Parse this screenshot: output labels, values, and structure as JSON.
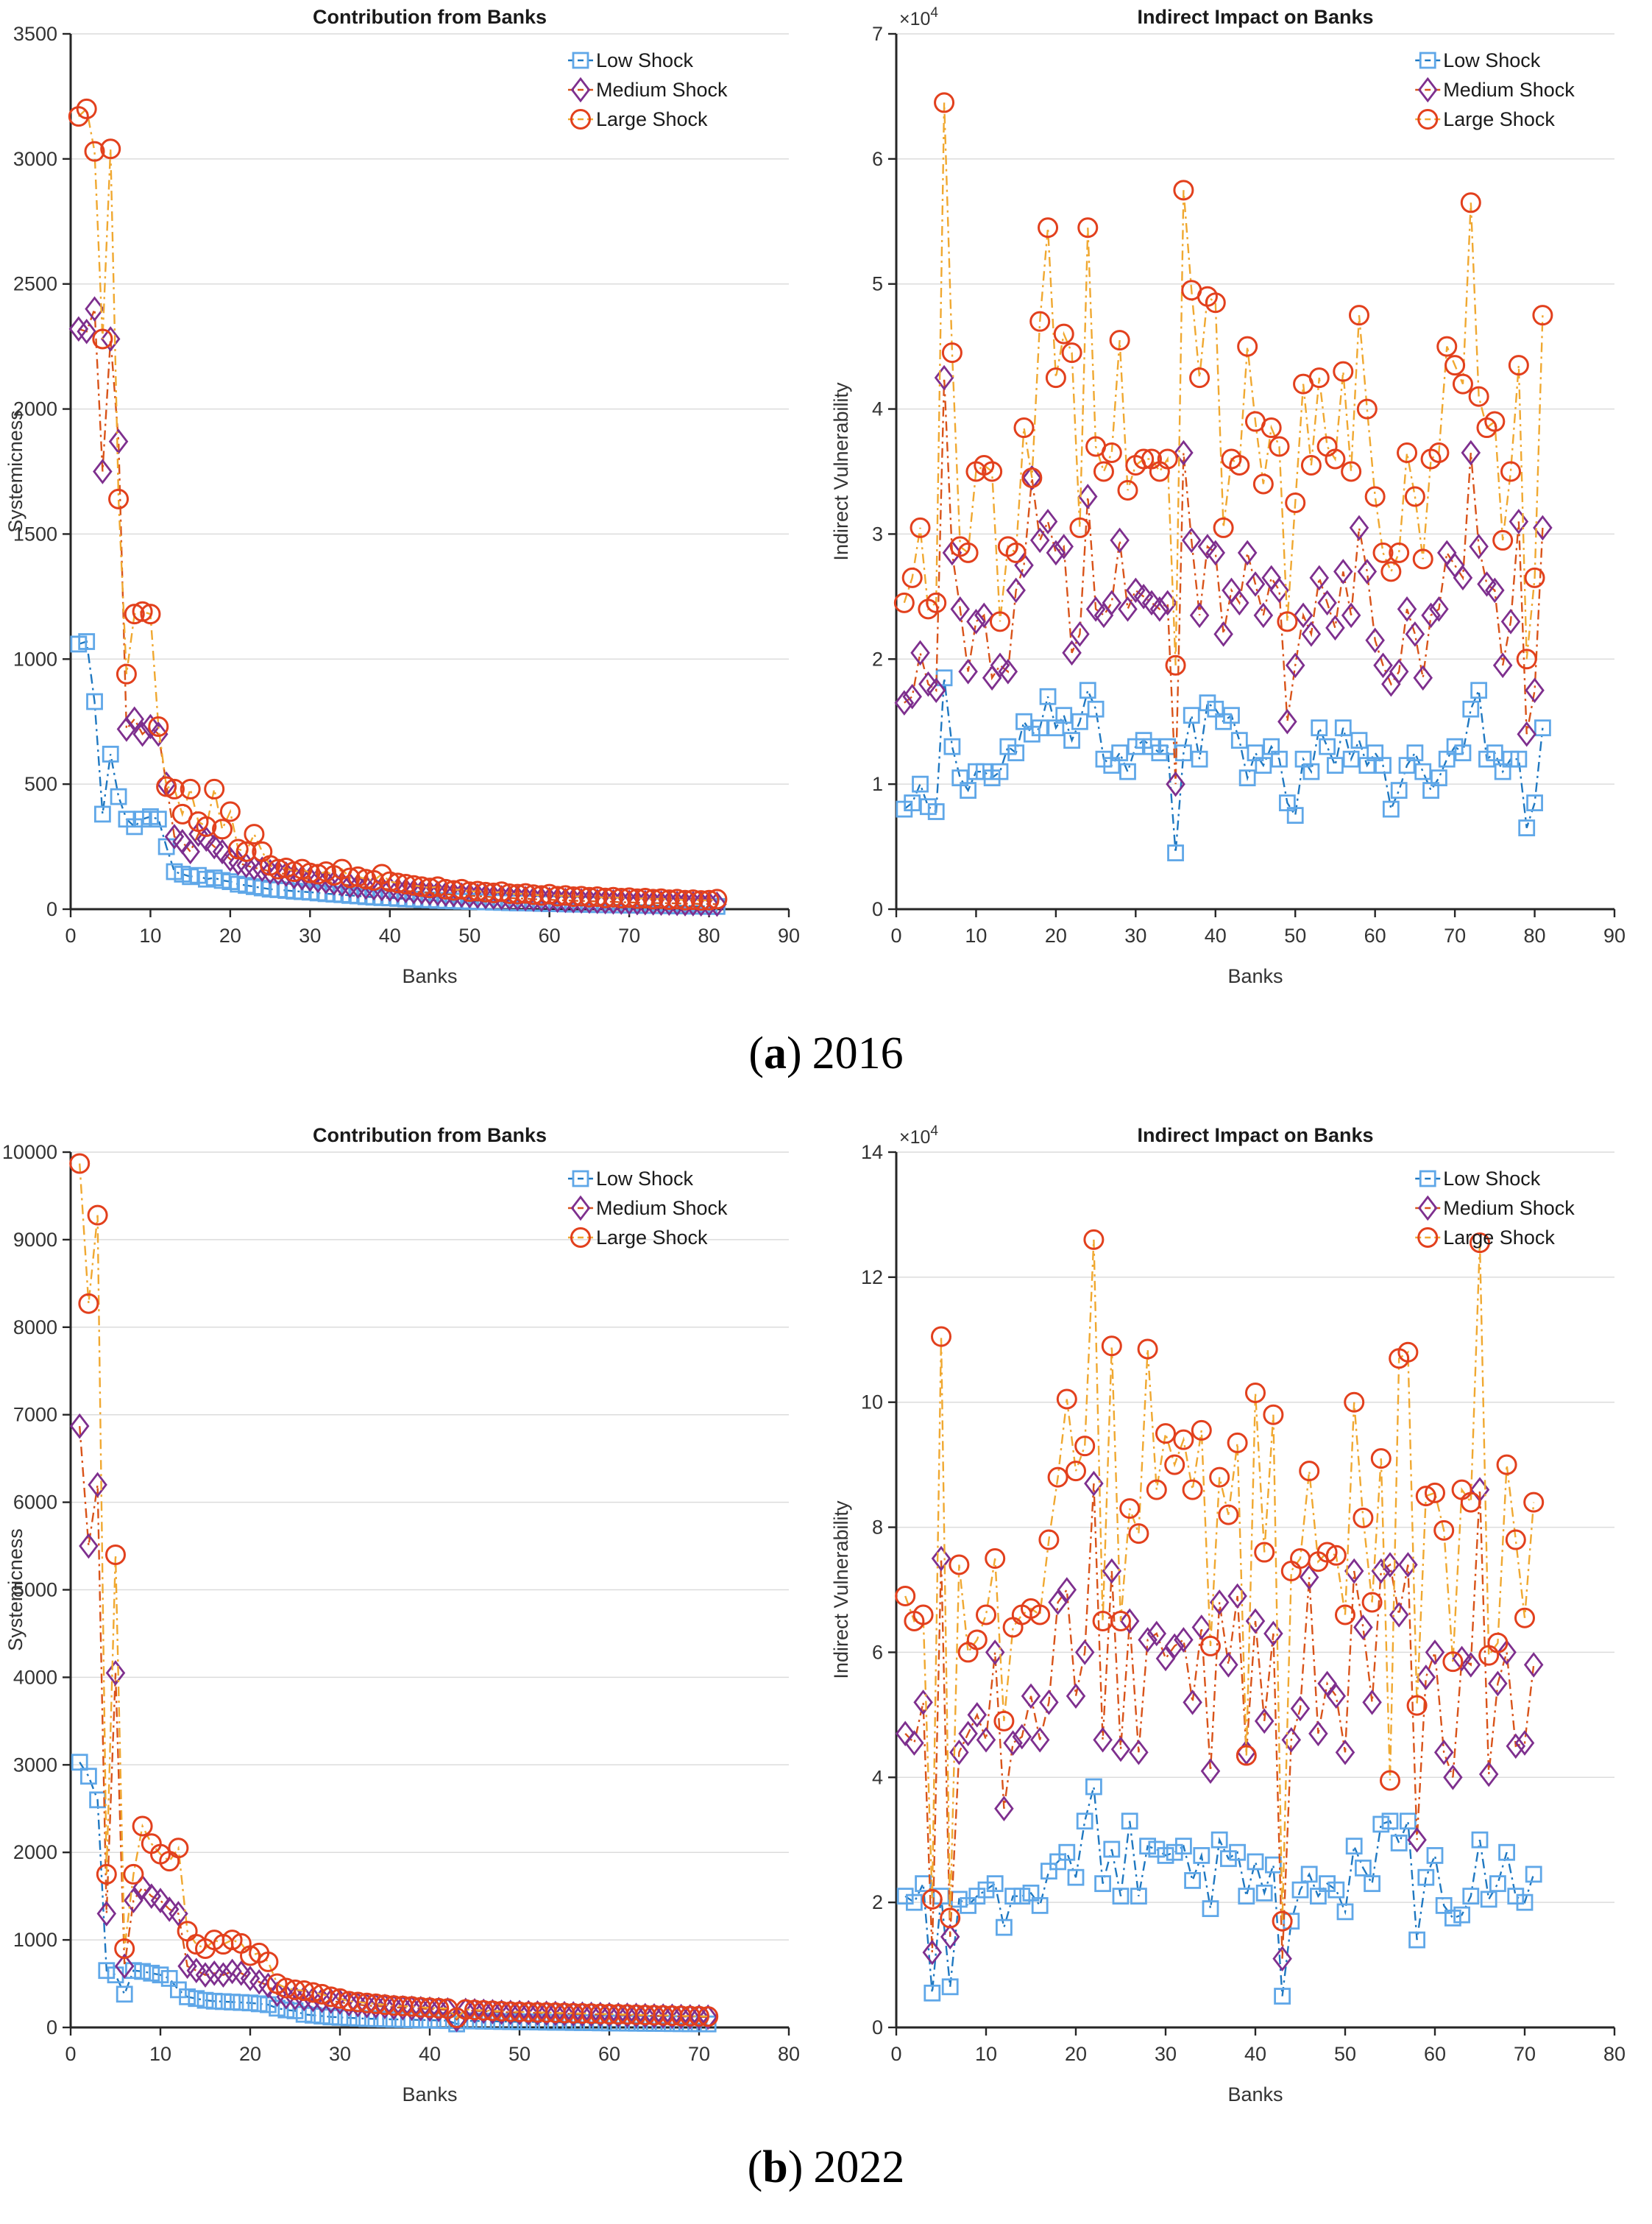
{
  "captions": {
    "paren_open": "(",
    "paren_close": ")",
    "a": {
      "label": "a",
      "year": "2016"
    },
    "b": {
      "label": "b",
      "year": "2022"
    }
  },
  "series_styles": {
    "low": {
      "marker": "square",
      "marker_color": "#5FA7E8",
      "line_color": "#1F78C1"
    },
    "medium": {
      "marker": "diamond",
      "marker_color": "#7E2F8E",
      "line_color": "#D95319"
    },
    "large": {
      "marker": "circle",
      "marker_color": "#E2401D",
      "line_color": "#F0A830"
    }
  },
  "axis_colors": {
    "spine": "#262626",
    "grid": "#DCDCDC",
    "tick_label": "#333333"
  },
  "chart_data": [
    {
      "id": "contribution-2016",
      "type": "line",
      "title": "Contribution from Banks",
      "xlabel": "Banks",
      "ylabel": "Systemicness",
      "x_max": 90,
      "x_tick_step": 10,
      "y_max": 3500,
      "y_tick_step": 500,
      "y_scale_label": null,
      "grid": "horizontal-only",
      "legend_position": "top-right-inside",
      "legend_x_frac": 0.71,
      "x_note": "bank index 1..81",
      "series": [
        {
          "name": "Low Shock",
          "key": "low",
          "values": [
            1060,
            1070,
            830,
            380,
            620,
            450,
            360,
            330,
            360,
            370,
            360,
            250,
            150,
            140,
            130,
            135,
            120,
            125,
            115,
            110,
            100,
            95,
            90,
            85,
            80,
            78,
            75,
            72,
            70,
            68,
            65,
            62,
            60,
            58,
            55,
            53,
            50,
            48,
            46,
            45,
            43,
            41,
            40,
            38,
            37,
            35,
            34,
            33,
            32,
            31,
            30,
            29,
            28,
            27,
            26,
            25,
            25,
            24,
            23,
            22,
            22,
            21,
            20,
            20,
            19,
            18,
            18,
            17,
            17,
            16,
            16,
            15,
            15,
            14,
            14,
            13,
            13,
            12,
            12,
            11,
            11
          ]
        },
        {
          "name": "Medium Shock",
          "key": "medium",
          "values": [
            2320,
            2310,
            2400,
            1750,
            2280,
            1870,
            720,
            760,
            700,
            730,
            700,
            500,
            290,
            270,
            230,
            300,
            280,
            250,
            230,
            200,
            185,
            175,
            165,
            160,
            150,
            145,
            140,
            130,
            125,
            120,
            115,
            110,
            105,
            100,
            95,
            92,
            88,
            85,
            82,
            80,
            76,
            74,
            70,
            68,
            65,
            63,
            60,
            58,
            56,
            54,
            52,
            50,
            48,
            46,
            45,
            43,
            42,
            40,
            39,
            38,
            36,
            35,
            34,
            33,
            32,
            31,
            30,
            29,
            28,
            27,
            26,
            26,
            25,
            24,
            24,
            23,
            22,
            22,
            21,
            21,
            20
          ]
        },
        {
          "name": "Large Shock",
          "key": "large",
          "values": [
            3170,
            3200,
            3030,
            2280,
            3040,
            1640,
            940,
            1180,
            1190,
            1180,
            730,
            490,
            480,
            380,
            480,
            350,
            330,
            480,
            320,
            390,
            240,
            230,
            300,
            230,
            175,
            160,
            165,
            150,
            160,
            145,
            140,
            150,
            135,
            160,
            125,
            130,
            120,
            115,
            140,
            110,
            105,
            100,
            95,
            90,
            85,
            90,
            80,
            75,
            80,
            70,
            72,
            68,
            65,
            70,
            62,
            60,
            63,
            58,
            55,
            60,
            52,
            55,
            50,
            52,
            48,
            50,
            45,
            48,
            44,
            46,
            42,
            44,
            40,
            42,
            38,
            40,
            36,
            38,
            35,
            36,
            40
          ]
        }
      ]
    },
    {
      "id": "indirect-2016",
      "type": "line",
      "title": "Indirect Impact on Banks",
      "xlabel": "Banks",
      "ylabel": "Indirect Vulnerability",
      "x_max": 90,
      "x_tick_step": 10,
      "y_max": 7,
      "y_tick_step": 1,
      "y_scale_label": "×10^4",
      "y_unit": 10000,
      "grid": "horizontal-only",
      "legend_position": "top-right-inside",
      "legend_x_frac": 0.74,
      "x_note": "bank index 1..81, values in 10^4",
      "series": [
        {
          "name": "Low Shock",
          "key": "low",
          "values": [
            0.8,
            0.85,
            1.0,
            0.82,
            0.78,
            1.85,
            1.3,
            1.05,
            0.95,
            1.1,
            1.1,
            1.05,
            1.1,
            1.3,
            1.25,
            1.5,
            1.4,
            1.45,
            1.7,
            1.45,
            1.55,
            1.35,
            1.5,
            1.75,
            1.6,
            1.2,
            1.15,
            1.25,
            1.1,
            1.3,
            1.35,
            1.3,
            1.25,
            1.3,
            0.45,
            1.25,
            1.55,
            1.2,
            1.65,
            1.6,
            1.5,
            1.55,
            1.35,
            1.05,
            1.25,
            1.15,
            1.3,
            1.2,
            0.85,
            0.75,
            1.2,
            1.1,
            1.45,
            1.3,
            1.15,
            1.45,
            1.2,
            1.35,
            1.15,
            1.25,
            1.15,
            0.8,
            0.95,
            1.15,
            1.25,
            1.1,
            0.95,
            1.05,
            1.2,
            1.3,
            1.25,
            1.6,
            1.75,
            1.2,
            1.25,
            1.1,
            1.2,
            1.2,
            0.65,
            0.85,
            1.45
          ]
        },
        {
          "name": "Medium Shock",
          "key": "medium",
          "values": [
            1.65,
            1.7,
            2.05,
            1.8,
            1.75,
            4.25,
            2.85,
            2.4,
            1.9,
            2.3,
            2.35,
            1.85,
            1.95,
            1.9,
            2.55,
            2.75,
            3.45,
            2.95,
            3.1,
            2.85,
            2.9,
            2.05,
            2.2,
            3.3,
            2.4,
            2.35,
            2.45,
            2.95,
            2.4,
            2.55,
            2.5,
            2.45,
            2.4,
            2.45,
            1.0,
            3.65,
            2.95,
            2.35,
            2.9,
            2.85,
            2.2,
            2.55,
            2.45,
            2.85,
            2.6,
            2.35,
            2.65,
            2.55,
            1.5,
            1.95,
            2.35,
            2.2,
            2.65,
            2.45,
            2.25,
            2.7,
            2.35,
            3.05,
            2.7,
            2.15,
            1.95,
            1.8,
            1.9,
            2.4,
            2.2,
            1.85,
            2.35,
            2.4,
            2.85,
            2.75,
            2.65,
            3.65,
            2.9,
            2.6,
            2.55,
            1.95,
            2.3,
            3.1,
            1.4,
            1.75,
            3.05
          ]
        },
        {
          "name": "Large Shock",
          "key": "large",
          "values": [
            2.45,
            2.65,
            3.05,
            2.4,
            2.45,
            6.45,
            4.45,
            2.9,
            2.85,
            3.5,
            3.55,
            3.5,
            2.3,
            2.9,
            2.85,
            3.85,
            3.45,
            4.7,
            5.45,
            4.25,
            4.6,
            4.45,
            3.05,
            5.45,
            3.7,
            3.5,
            3.65,
            4.55,
            3.35,
            3.55,
            3.6,
            3.6,
            3.5,
            3.6,
            1.95,
            5.75,
            4.95,
            4.25,
            4.9,
            4.85,
            3.05,
            3.6,
            3.55,
            4.5,
            3.9,
            3.4,
            3.85,
            3.7,
            2.3,
            3.25,
            4.2,
            3.55,
            4.25,
            3.7,
            3.6,
            4.3,
            3.5,
            4.75,
            4.0,
            3.3,
            2.85,
            2.7,
            2.85,
            3.65,
            3.3,
            2.8,
            3.6,
            3.65,
            4.5,
            4.35,
            4.2,
            5.65,
            4.1,
            3.85,
            3.9,
            2.95,
            3.5,
            4.35,
            2.0,
            2.65,
            4.75
          ]
        }
      ]
    },
    {
      "id": "contribution-2022",
      "type": "line",
      "title": "Contribution from Banks",
      "xlabel": "Banks",
      "ylabel": "Systemicness",
      "x_max": 80,
      "x_tick_step": 10,
      "y_max": 10000,
      "y_tick_step": 1000,
      "y_scale_label": null,
      "grid": "horizontal-only",
      "legend_position": "top-right-inside",
      "legend_x_frac": 0.71,
      "x_note": "bank index 1..71",
      "series": [
        {
          "name": "Low Shock",
          "key": "low",
          "values": [
            3030,
            2870,
            2600,
            650,
            600,
            380,
            650,
            640,
            620,
            600,
            560,
            430,
            350,
            330,
            310,
            300,
            295,
            290,
            285,
            280,
            270,
            260,
            220,
            200,
            190,
            150,
            140,
            130,
            120,
            115,
            110,
            105,
            100,
            98,
            95,
            92,
            90,
            88,
            85,
            83,
            80,
            78,
            40,
            76,
            74,
            72,
            70,
            68,
            66,
            65,
            64,
            62,
            60,
            59,
            58,
            56,
            55,
            54,
            52,
            51,
            50,
            49,
            48,
            47,
            46,
            45,
            44,
            43,
            42,
            41,
            40
          ]
        },
        {
          "name": "Medium Shock",
          "key": "medium",
          "values": [
            6870,
            5500,
            6200,
            1300,
            4050,
            700,
            1450,
            1600,
            1500,
            1450,
            1350,
            1300,
            700,
            650,
            600,
            620,
            600,
            640,
            620,
            560,
            520,
            480,
            380,
            350,
            340,
            330,
            320,
            310,
            300,
            290,
            270,
            260,
            250,
            245,
            240,
            230,
            225,
            220,
            215,
            210,
            205,
            200,
            90,
            195,
            190,
            185,
            180,
            175,
            172,
            170,
            168,
            165,
            162,
            160,
            158,
            155,
            152,
            150,
            148,
            145,
            142,
            140,
            138,
            135,
            132,
            130,
            128,
            125,
            122,
            120,
            118
          ]
        },
        {
          "name": "Large Shock",
          "key": "large",
          "values": [
            9870,
            8270,
            9280,
            1750,
            5400,
            900,
            1750,
            2300,
            2100,
            1980,
            1900,
            2050,
            1100,
            950,
            900,
            1000,
            950,
            1000,
            960,
            820,
            850,
            750,
            500,
            450,
            430,
            420,
            400,
            380,
            350,
            330,
            300,
            290,
            280,
            270,
            260,
            250,
            245,
            240,
            230,
            225,
            220,
            215,
            110,
            205,
            200,
            195,
            190,
            185,
            180,
            178,
            175,
            172,
            170,
            168,
            165,
            162,
            160,
            158,
            155,
            152,
            150,
            148,
            145,
            142,
            140,
            138,
            135,
            132,
            130,
            128,
            125
          ]
        }
      ]
    },
    {
      "id": "indirect-2022",
      "type": "line",
      "title": "Indirect Impact on Banks",
      "xlabel": "Banks",
      "ylabel": "Indirect Vulnerability",
      "x_max": 80,
      "x_tick_step": 10,
      "y_max": 14,
      "y_tick_step": 2,
      "y_scale_label": "×10^4",
      "y_unit": 10000,
      "grid": "horizontal-only",
      "legend_position": "top-right-inside",
      "legend_x_frac": 0.74,
      "x_note": "bank index 1..71, values in 10^4",
      "series": [
        {
          "name": "Low Shock",
          "key": "low",
          "values": [
            2.1,
            2.0,
            2.3,
            0.55,
            2.1,
            0.65,
            2.05,
            1.95,
            2.1,
            2.2,
            2.3,
            1.6,
            2.1,
            2.1,
            2.15,
            1.95,
            2.5,
            2.65,
            2.8,
            2.4,
            3.3,
            3.85,
            2.3,
            2.85,
            2.1,
            3.3,
            2.1,
            2.9,
            2.85,
            2.75,
            2.8,
            2.9,
            2.35,
            2.75,
            1.9,
            3.0,
            2.7,
            2.8,
            2.1,
            2.65,
            2.15,
            2.6,
            0.5,
            1.7,
            2.2,
            2.45,
            2.1,
            2.3,
            2.2,
            1.85,
            2.9,
            2.55,
            2.3,
            3.25,
            3.3,
            2.95,
            3.3,
            1.4,
            2.4,
            2.75,
            1.95,
            1.75,
            1.8,
            2.1,
            3.0,
            2.05,
            2.3,
            2.8,
            2.1,
            2.0,
            2.45
          ]
        },
        {
          "name": "Medium Shock",
          "key": "medium",
          "values": [
            4.7,
            4.55,
            5.2,
            1.2,
            7.5,
            1.45,
            4.4,
            4.7,
            5.0,
            4.6,
            6.0,
            3.5,
            4.55,
            4.65,
            5.3,
            4.6,
            5.2,
            6.8,
            7.0,
            5.3,
            6.0,
            8.7,
            4.6,
            7.3,
            4.45,
            6.5,
            4.4,
            6.2,
            6.3,
            5.9,
            6.1,
            6.2,
            5.2,
            6.4,
            4.1,
            6.8,
            5.8,
            6.9,
            4.4,
            6.5,
            4.9,
            6.3,
            1.1,
            4.6,
            5.1,
            7.2,
            4.7,
            5.5,
            5.3,
            4.4,
            7.3,
            6.4,
            5.2,
            7.3,
            7.4,
            6.6,
            7.4,
            3.0,
            5.6,
            6.0,
            4.4,
            4.0,
            5.9,
            5.8,
            8.6,
            4.05,
            5.5,
            6.0,
            4.5,
            4.55,
            5.8
          ]
        },
        {
          "name": "Large Shock",
          "key": "large",
          "values": [
            6.9,
            6.5,
            6.6,
            2.05,
            11.05,
            1.75,
            7.4,
            6.0,
            6.2,
            6.6,
            7.5,
            4.9,
            6.4,
            6.6,
            6.7,
            6.6,
            7.8,
            8.8,
            10.05,
            8.9,
            9.3,
            12.6,
            6.5,
            10.9,
            6.5,
            8.3,
            7.9,
            10.85,
            8.6,
            9.5,
            9.0,
            9.4,
            8.6,
            9.55,
            6.1,
            8.8,
            8.2,
            9.35,
            4.35,
            10.15,
            7.6,
            9.8,
            1.7,
            7.3,
            7.5,
            8.9,
            7.45,
            7.6,
            7.55,
            6.6,
            10.0,
            8.15,
            6.8,
            9.1,
            3.95,
            10.7,
            10.8,
            5.15,
            8.5,
            8.55,
            7.95,
            5.85,
            8.6,
            8.4,
            12.55,
            5.95,
            6.15,
            9.0,
            7.8,
            6.55,
            8.4
          ]
        }
      ]
    }
  ]
}
